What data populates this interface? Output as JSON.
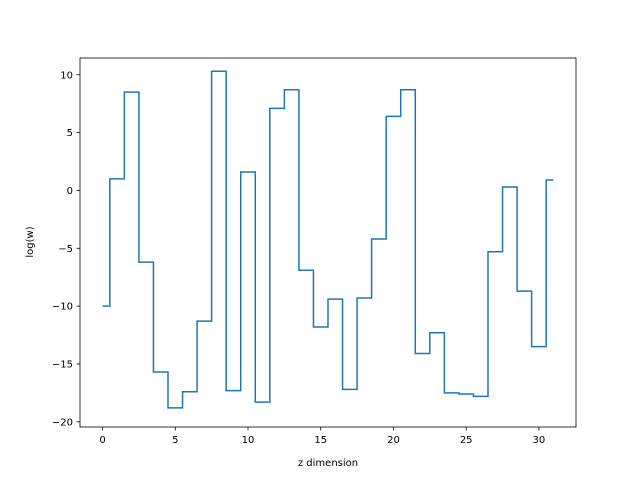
{
  "chart_data": {
    "type": "line",
    "drawstyle": "steps-mid",
    "xlabel": "z dimension",
    "ylabel": "log(w)",
    "xlim": [
      -1.55,
      32.55
    ],
    "ylim": [
      -20.45,
      11.45
    ],
    "xticks": [
      0,
      5,
      10,
      15,
      20,
      25,
      30
    ],
    "yticks": [
      -20,
      -15,
      -10,
      -5,
      0,
      5,
      10
    ],
    "xtick_labels": [
      "0",
      "5",
      "10",
      "15",
      "20",
      "25",
      "30"
    ],
    "ytick_labels": [
      "−20",
      "−15",
      "−10",
      "−5",
      "0",
      "5",
      "10"
    ],
    "grid": false,
    "color": "#1f77b4",
    "series": [
      {
        "x": [
          0,
          1,
          2,
          3,
          4,
          5,
          6,
          7,
          8,
          9,
          10,
          11,
          12,
          13,
          14,
          15,
          16,
          17,
          18,
          19,
          20,
          21,
          22,
          23,
          24,
          25,
          26,
          27,
          28,
          29,
          30,
          31
        ],
        "values": [
          -10.0,
          1.0,
          8.5,
          -6.2,
          -15.7,
          -18.8,
          -17.4,
          -11.3,
          10.3,
          -17.3,
          1.6,
          -18.3,
          7.1,
          8.7,
          -6.9,
          -11.8,
          -9.4,
          -17.2,
          -9.3,
          -4.2,
          6.4,
          8.7,
          -14.1,
          -12.3,
          -17.5,
          -17.6,
          -17.8,
          -5.3,
          0.3,
          -8.7,
          -13.5,
          0.9
        ]
      }
    ]
  }
}
